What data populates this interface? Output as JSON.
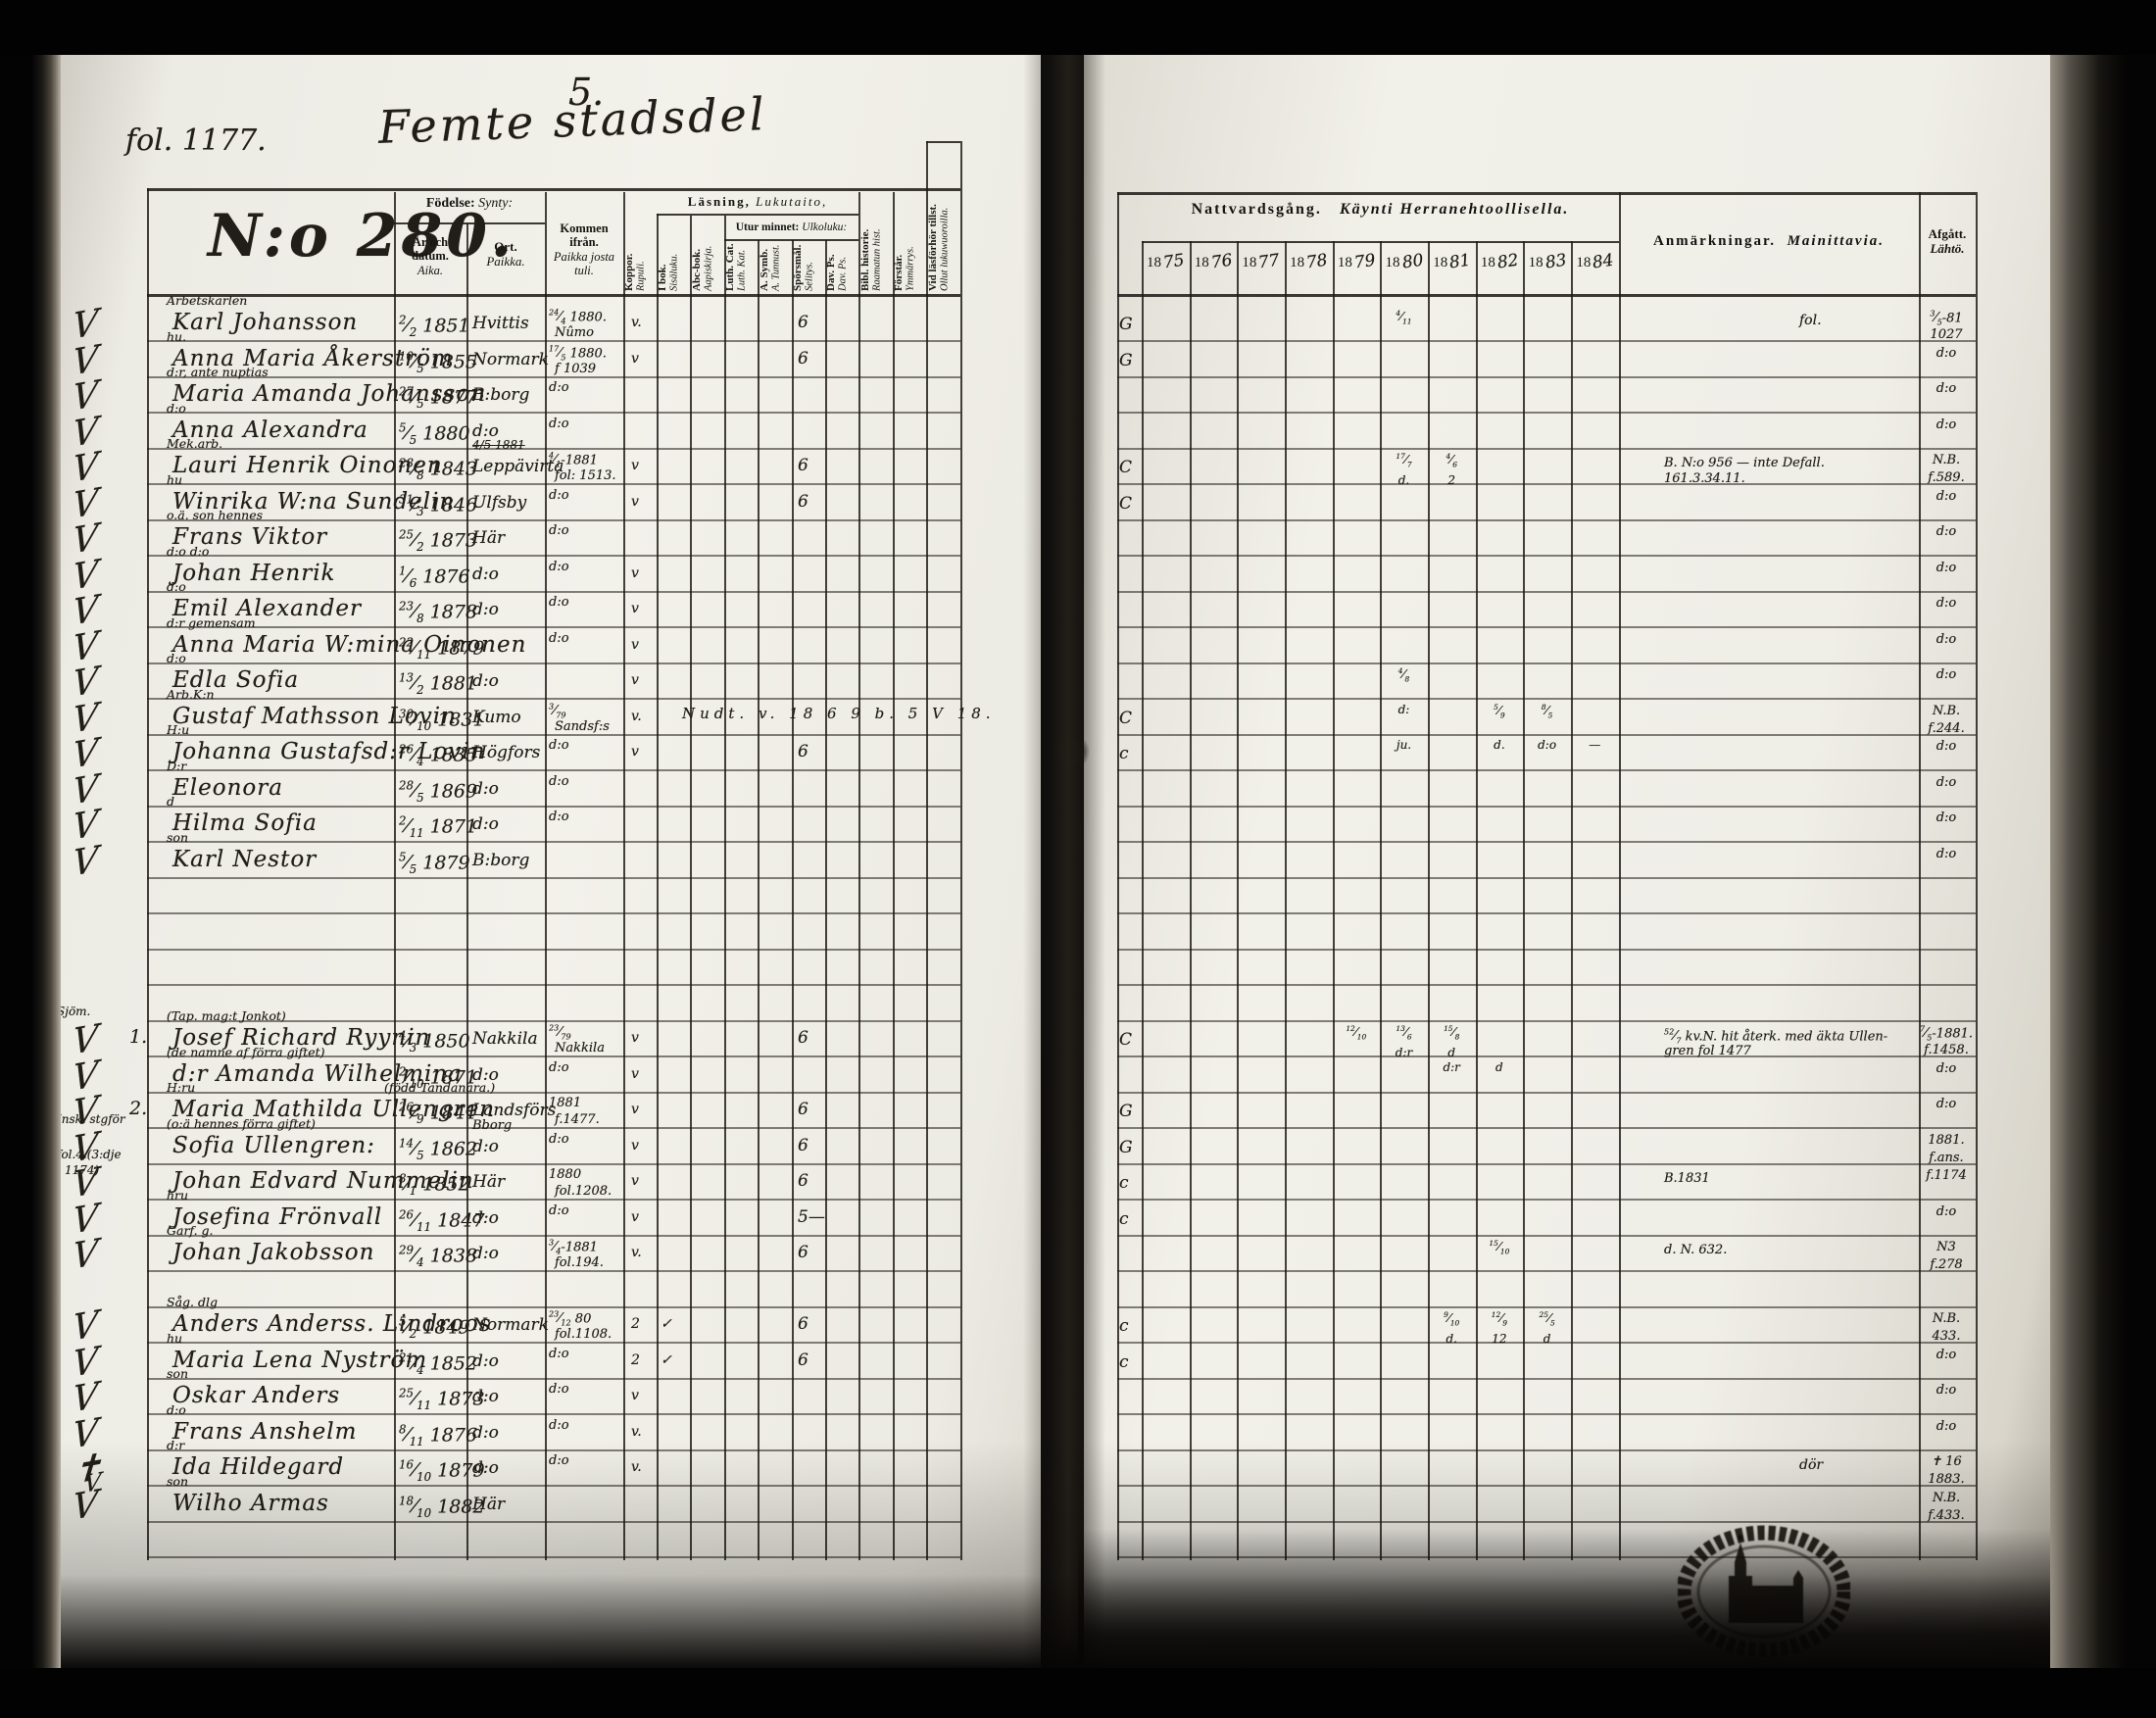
{
  "page": {
    "folio": "fol. 1177.",
    "number": "5.",
    "district": "Femte stadsdel",
    "record_no": "N:o 280."
  },
  "left_header": {
    "birth_sv": "Födelse:",
    "birth_fi": "Synty:",
    "date_sv": "År och datum.",
    "date_fi": "Aika.",
    "place_sv": "Ort.",
    "place_fi": "Paikka.",
    "arrived_sv": "Kommen ifrån.",
    "arrived_fi": "Paikka josta tuli.",
    "reading_sv": "Läsning,",
    "reading_fi": "Lukutaito,",
    "memory_sv": "Utur minnet:",
    "memory_fi": "Ulkoluku:",
    "cols": [
      [
        "Koppor.",
        "Rupuli."
      ],
      [
        "I bok.",
        "Sisäluku."
      ],
      [
        "Abc-bok.",
        "Aapiskirja."
      ],
      [
        "Luth. Cat.",
        "Luth. Kat."
      ],
      [
        "A. Symb.",
        "A. Tunnust."
      ],
      [
        "Spörsmål.",
        "Selitys."
      ],
      [
        "Dav. Ps.",
        "Dav. Ps."
      ],
      [
        "Bibl. historie.",
        "Raamatun hist."
      ],
      [
        "Förstår.",
        "Ymmärrys."
      ],
      [
        "Vid läsförhör tillst.",
        "Ollut lukuwuoroilla."
      ]
    ]
  },
  "right_header": {
    "communion_sv": "Nattvardsgång.",
    "communion_fi": "Käynti Herranehtoollisella.",
    "year_prefix": "18",
    "years": [
      "75",
      "76",
      "77",
      "78",
      "79",
      "80",
      "81",
      "82",
      "83",
      "84"
    ],
    "remarks_sv": "Anmärkningar.",
    "remarks_fi": "Mainittavia.",
    "departed_sv": "Afgått.",
    "departed_fi": "Lähtö."
  },
  "rows": [
    {
      "line": 0,
      "check": "V",
      "note": "Arbetskarlen",
      "name": "Karl Johansson",
      "born": "2/2 1851",
      "ort": "Hvittis",
      "kommen": "24/4 1880.",
      "kommen2": "Nûmo",
      "koppor": "v.",
      "sporsmal": "6",
      "cg": "G",
      "nv": [
        {
          "c": 5,
          "t": "4/11"
        }
      ],
      "anmr": "fol.",
      "afg": "3/5-81",
      "afg2": "1027"
    },
    {
      "line": 1,
      "check": "V",
      "note": "hu.",
      "name": "Anna Maria Åkerström",
      "born": "10/5 1855",
      "ort": "Normark",
      "kommen": "17/5 1880.",
      "kommen2": "f 1039",
      "koppor": "v",
      "sporsmal": "6",
      "cg": "G",
      "afg": "d:o"
    },
    {
      "line": 2,
      "check": "V",
      "note": "d:r, ante nuptias",
      "name": "Maria Amanda Johansson",
      "born": "27/5 1877",
      "ort": "B:borg",
      "kommen": "d:o",
      "afg": "d:o"
    },
    {
      "line": 3,
      "check": "V",
      "note": "d:o",
      "name": "Anna Alexandra",
      "born": "5/5 1880",
      "ort": "d:o",
      "kommen": "d:o",
      "afg": "d:o"
    },
    {
      "line": 4,
      "check": "V",
      "note": "Mek.arb.",
      "name": "Lauri Henrik Oinonen",
      "born": "28/8 1843",
      "ortStrike": "4/5 1881",
      "ort": "Leppävirta",
      "kommen": "4/1-1881",
      "kommen2": "fol: 1513.",
      "koppor": "v",
      "sporsmal": "6",
      "cg": "C",
      "nv": [
        {
          "c": 5,
          "t": "17/7"
        },
        {
          "c": 6,
          "t": "4/6"
        },
        {
          "c": 5,
          "t": "d.",
          "dy": 1
        },
        {
          "c": 6,
          "t": "2",
          "dy": 1
        }
      ],
      "anm": "B. N:o 956 — inte Defall.",
      "anm2": "161.3.34.11.",
      "afg": "N.B.",
      "afg2": "f.589."
    },
    {
      "line": 5,
      "check": "V",
      "note": "hu",
      "name": "Winrika W:na Sundelin",
      "born": "31/3 1846",
      "ort": "Ulfsby",
      "kommen": "d:o",
      "koppor": "v",
      "sporsmal": "6",
      "cg": "C",
      "afg": "d:o"
    },
    {
      "line": 6,
      "check": "V",
      "note": "o.ä. son hennes",
      "name": "Frans Viktor",
      "born": "25/2 1873",
      "ort": "Här",
      "kommen": "d:o",
      "afg": "d:o"
    },
    {
      "line": 7,
      "check": "V",
      "note": "d:o  d:o",
      "name": "Johan Henrik",
      "born": "1/6 1876",
      "ort": "d:o",
      "kommen": "d:o",
      "koppor": "v",
      "afg": "d:o"
    },
    {
      "line": 8,
      "check": "V",
      "note": "d:o",
      "name": "Emil Alexander",
      "born": "23/8 1878",
      "ort": "d:o",
      "kommen": "d:o",
      "koppor": "v",
      "afg": "d:o"
    },
    {
      "line": 9,
      "check": "V",
      "note": "d:r  gemensam",
      "name": "Anna Maria W:mina Oinonen",
      "born": "22/11 1879",
      "kommen": "d:o",
      "koppor": "v",
      "afg": "d:o"
    },
    {
      "line": 10,
      "check": "V",
      "note": "d:o",
      "name": "Edla Sofia",
      "born": "13/2 1881",
      "ort": "d:o",
      "koppor": "v",
      "nv": [
        {
          "c": 5,
          "t": "4/8"
        }
      ],
      "afg": "d:o"
    },
    {
      "line": 11,
      "check": "V",
      "note": "Arb.K:n",
      "name": "Gustaf Mathsson Lovin",
      "born": "30/10 1831",
      "ort": "Kumo",
      "kommen": "3/79",
      "kommen2": "Sandsf:s",
      "koppor": "v.",
      "scrawl": "Nudt. v. 18 6 9 b. 5 V 18.",
      "cg": "C",
      "nv": [
        {
          "c": 5,
          "t": "d:"
        },
        {
          "c": 7,
          "t": "5/9"
        },
        {
          "c": 8,
          "t": "8/5"
        }
      ],
      "afg": "N.B.",
      "afg2": "f.244."
    },
    {
      "line": 12,
      "check": "V",
      "note": "H:u",
      "name": "Johanna Gustafsd:r Lovin",
      "born": "26/4 1835",
      "ort": "Högfors",
      "kommen": "d:o",
      "koppor": "v",
      "sporsmal": "6",
      "cg": "c",
      "nv": [
        {
          "c": 5,
          "t": "ju."
        },
        {
          "c": 7,
          "t": "d."
        },
        {
          "c": 8,
          "t": "d:o"
        },
        {
          "c": 9,
          "t": "—"
        }
      ],
      "afg": "d:o"
    },
    {
      "line": 13,
      "check": "V",
      "note": "D:r",
      "name": "Eleonora",
      "born": "28/5 1869",
      "ort": "d:o",
      "kommen": "d:o",
      "afg": "d:o"
    },
    {
      "line": 14,
      "check": "V",
      "note": "d",
      "name": "Hilma Sofia",
      "born": "2/11 1871",
      "ort": "d:o",
      "kommen": "d:o",
      "afg": "d:o"
    },
    {
      "line": 15,
      "check": "V",
      "note": "son",
      "name": "Karl Nestor",
      "born": "5/5 1879",
      "ort": "B:borg",
      "afg": "d:o"
    },
    {
      "line": 20,
      "check": "V",
      "margin": "Sjöm.",
      "num": "1.",
      "note": "(Tap. mag:t Jonkot)",
      "name": "Josef Richard Ryynin",
      "born": "4/3 1850",
      "ort": "Nakkila",
      "kommen": "23/79",
      "kommen2": "Nakkila",
      "koppor": "v",
      "sporsmal": "6",
      "cg": "C",
      "nv": [
        {
          "c": 4,
          "t": "12/10"
        },
        {
          "c": 5,
          "t": "13/6"
        },
        {
          "c": 6,
          "t": "15/8"
        },
        {
          "c": 5,
          "t": "d:r",
          "dy": 1
        },
        {
          "c": 6,
          "t": "d",
          "dy": 1
        }
      ],
      "anm": "52/7 kv.N. hit återk. med äkta Ullen-",
      "anm2": "gren fol 1477",
      "afg": "7/5-1881.",
      "afg2": "f.1458."
    },
    {
      "line": 21,
      "check": "V",
      "note": "(de namne af förra giftet)",
      "name": "d:r Amanda Wilhelmina",
      "born": "2/10 1871",
      "ort": "d:o",
      "kommen": "d:o",
      "koppor": "v",
      "nv": [
        {
          "c": 6,
          "t": "d:r"
        },
        {
          "c": 7,
          "t": "d"
        }
      ],
      "afg": "d:o"
    },
    {
      "line": 22,
      "check": "V",
      "num": "2.",
      "note": "H:ru",
      "note2": "(född Tandanara.)",
      "name": "Maria Mathilda Ullengren",
      "born": "26/9 1841",
      "ort": "Landsförs",
      "ort2": "Bborg",
      "kommen": "1881",
      "kommen2": "f.1477.",
      "koppor": "v",
      "sporsmal": "6",
      "cg": "G",
      "afg": "d:o"
    },
    {
      "line": 23,
      "check": "V",
      "margin": "Insk. stgför",
      "note": "(o:ä hennes förra giftet)",
      "name": "Sofia Ullengren:",
      "born": "14/5 1862",
      "ort": "d:o",
      "kommen": "d:o",
      "koppor": "v",
      "sporsmal": "6",
      "cg": "G",
      "afg": "1881.",
      "afg2": "f.ans."
    },
    {
      "line": 24,
      "check": "V",
      "margin": "fol.4.(3:dje",
      "margin2": "1174)",
      "name": "Johan Edvard Nummelin",
      "born": "8/1 1852",
      "ort": "Här",
      "kommen": "1880",
      "kommen2": "fol.1208.",
      "koppor": "v",
      "sporsmal": "6",
      "cg": "c",
      "anm": "B.1831",
      "afg": "f.1174"
    },
    {
      "line": 25,
      "check": "V",
      "note": "hru",
      "name": "Josefina Frönvall",
      "born": "26/11 1847",
      "ort": "d:o",
      "kommen": "d:o",
      "koppor": "v",
      "sporsmal": "5—",
      "cg": "c",
      "afg": "d:o"
    },
    {
      "line": 26,
      "check": "V",
      "note": "Garf. g.",
      "name": "Johan Jakobsson",
      "born": "29/4 1838",
      "ort": "d:o",
      "kommen": "3/4-1881",
      "kommen2": "fol.194.",
      "koppor": "v.",
      "sporsmal": "6",
      "nv": [
        {
          "c": 7,
          "t": "15/10"
        }
      ],
      "anm": "d. N. 632.",
      "afg": "N3",
      "afg2": "f.278"
    },
    {
      "line": 28,
      "check": "V",
      "note": "Såg. dlg",
      "name": "Anders Anderss. Lindroos",
      "born": "5/2 1849",
      "ort": "Normark",
      "kommen": "23/12 80",
      "kommen2": "fol.1108.",
      "koppor": "2",
      "koppor2": "✓",
      "sporsmal": "6",
      "cg": "c",
      "nv": [
        {
          "c": 6,
          "t": "9/10"
        },
        {
          "c": 7,
          "t": "12/9"
        },
        {
          "c": 8,
          "t": "25/5"
        },
        {
          "c": 6,
          "t": "d.",
          "dy": 1
        },
        {
          "c": 7,
          "t": "12",
          "dy": 1
        },
        {
          "c": 8,
          "t": "d",
          "dy": 1
        }
      ],
      "afg": "N.B.",
      "afg2": "433."
    },
    {
      "line": 29,
      "check": "V",
      "note": "hu",
      "name": "Maria Lena Nyström",
      "born": "21/4 1852",
      "ort": "d:o",
      "kommen": "d:o",
      "koppor": "2",
      "koppor2": "✓",
      "sporsmal": "6",
      "cg": "c",
      "afg": "d:o"
    },
    {
      "line": 30,
      "check": "V",
      "note": "son",
      "name": "Oskar Anders",
      "born": "25/11 1873",
      "ort": "d:o",
      "kommen": "d:o",
      "koppor": "v",
      "afg": "d:o"
    },
    {
      "line": 31,
      "check": "V",
      "note": "d:o",
      "name": "Frans Anshelm",
      "born": "8/11 1876",
      "ort": "d:o",
      "kommen": "d:o",
      "koppor": "v.",
      "afg": "d:o"
    },
    {
      "line": 32,
      "check": "✝",
      "check2": "V",
      "note": "d:r",
      "name": "Ida Hildegard",
      "born": "16/10 1879",
      "ort": "d:o",
      "kommen": "d:o",
      "koppor": "v.",
      "anmr": "dör",
      "afg": "✝ 16",
      "afg2": "1883."
    },
    {
      "line": 33,
      "check": "V",
      "note": "son",
      "name": "Wilho Armas",
      "born": "18/10 1882",
      "ort": "Här",
      "afg": "N.B.",
      "afg2": "f.433."
    }
  ]
}
